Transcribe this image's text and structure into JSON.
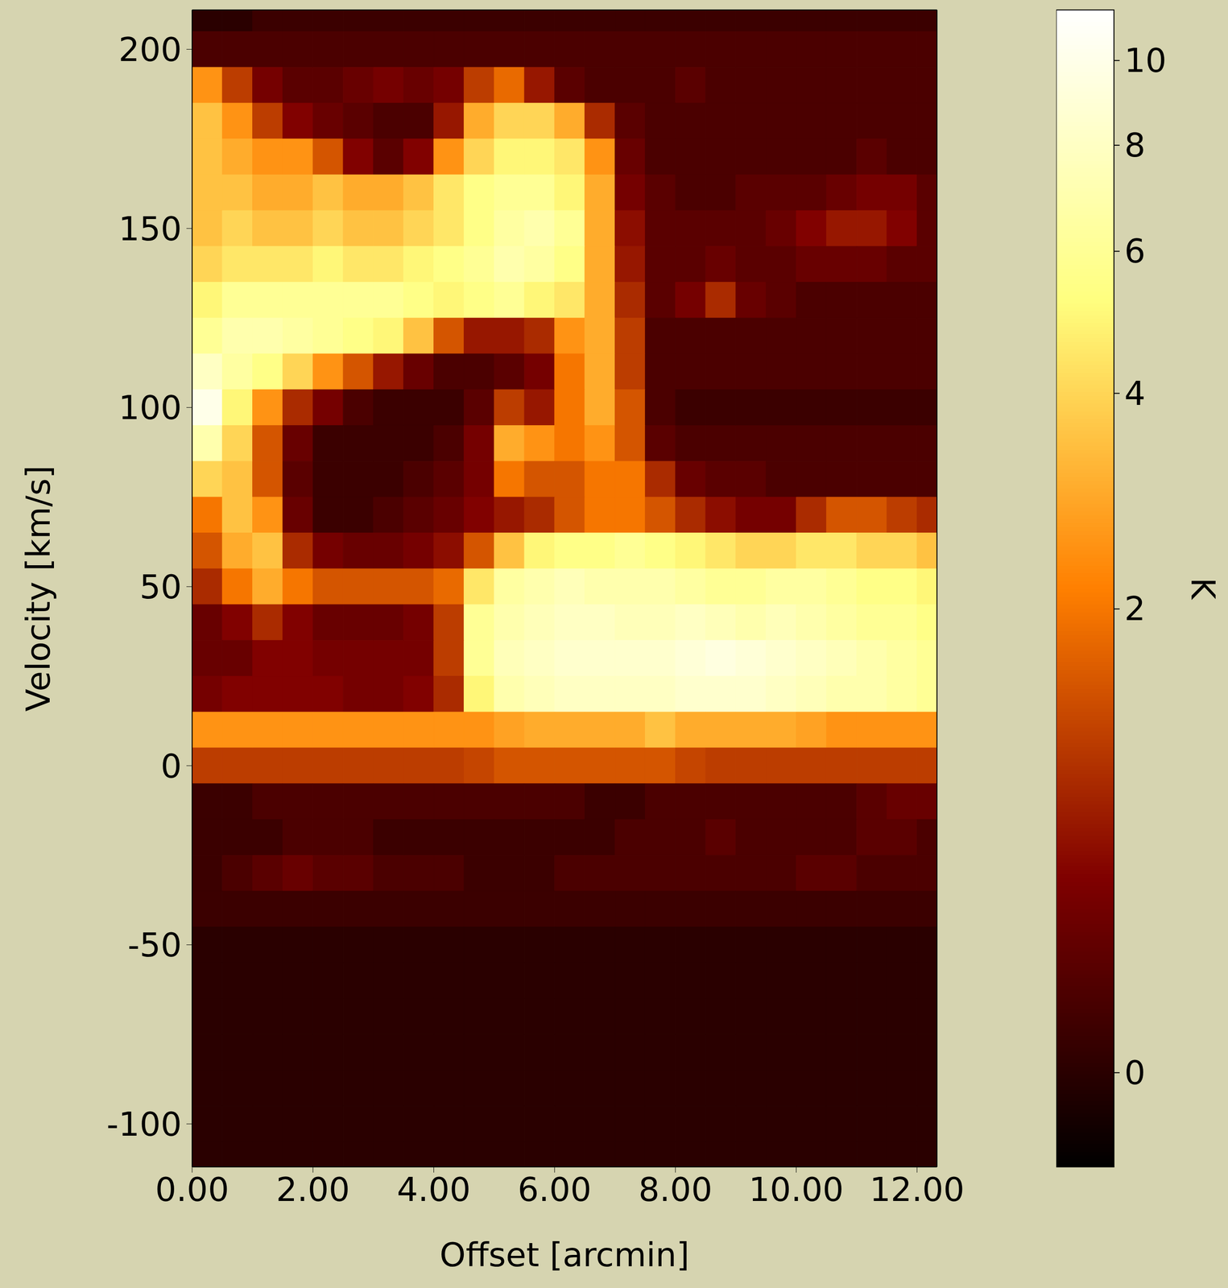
{
  "chart_data": {
    "type": "heatmap",
    "xlabel": "Offset [arcmin]",
    "ylabel": "Velocity [km/s]",
    "xlim": [
      0,
      12.33
    ],
    "ylim": [
      -112,
      211
    ],
    "xticks": [
      {
        "value": 0,
        "label": "0.00"
      },
      {
        "value": 2,
        "label": "2.00"
      },
      {
        "value": 4,
        "label": "4.00"
      },
      {
        "value": 6,
        "label": "6.00"
      },
      {
        "value": 8,
        "label": "8.00"
      },
      {
        "value": 10,
        "label": "10.00"
      },
      {
        "value": 12,
        "label": "12.00"
      }
    ],
    "yticks": [
      -100,
      -50,
      0,
      50,
      100,
      150,
      200
    ],
    "x": [
      0.25,
      0.75,
      1.25,
      1.75,
      2.25,
      2.75,
      3.25,
      3.75,
      4.25,
      4.75,
      5.25,
      5.75,
      6.25,
      6.75,
      7.25,
      7.75,
      8.25,
      8.75,
      9.25,
      9.75,
      10.25,
      10.75,
      11.25,
      11.75,
      12.25
    ],
    "y": [
      210,
      200,
      190,
      180,
      170,
      160,
      150,
      140,
      130,
      120,
      110,
      100,
      90,
      80,
      70,
      60,
      50,
      40,
      30,
      20,
      10,
      0,
      -10,
      -20,
      -30,
      -40,
      -50,
      -60,
      -70,
      -80,
      -90,
      -100,
      -110
    ],
    "cells": [
      [
        0,
        0,
        0.1,
        0.1,
        0.1,
        0.1,
        0.1,
        0.1,
        0.1,
        0.1,
        0.1,
        0.1,
        0.1,
        0.1,
        0.1,
        0.1,
        0.1,
        0.1,
        0.1,
        0.1,
        0.1,
        0.1,
        0.1,
        0.1,
        0.1
      ],
      [
        0.2,
        0.2,
        0.2,
        0.2,
        0.2,
        0.2,
        0.2,
        0.2,
        0.2,
        0.2,
        0.2,
        0.2,
        0.2,
        0.2,
        0.2,
        0.2,
        0.2,
        0.2,
        0.2,
        0.2,
        0.2,
        0.2,
        0.2,
        0.2,
        0.2
      ],
      [
        2.5,
        1.2,
        0.5,
        0.3,
        0.3,
        0.4,
        0.5,
        0.4,
        0.5,
        1.2,
        1.8,
        0.8,
        0.3,
        0.2,
        0.2,
        0.2,
        0.3,
        0.2,
        0.2,
        0.2,
        0.2,
        0.2,
        0.2,
        0.2,
        0.2
      ],
      [
        3.5,
        2.5,
        1.2,
        0.6,
        0.4,
        0.3,
        0.2,
        0.2,
        0.8,
        3.0,
        4.0,
        4.0,
        3.0,
        1.0,
        0.3,
        0.2,
        0.2,
        0.2,
        0.2,
        0.2,
        0.2,
        0.2,
        0.2,
        0.2,
        0.2
      ],
      [
        3.5,
        3.0,
        2.5,
        2.5,
        1.5,
        0.6,
        0.3,
        0.6,
        2.5,
        4.0,
        5.0,
        5.0,
        4.5,
        2.5,
        0.4,
        0.2,
        0.2,
        0.2,
        0.2,
        0.2,
        0.2,
        0.2,
        0.3,
        0.2,
        0.2
      ],
      [
        3.5,
        3.5,
        3.0,
        3.0,
        3.5,
        3.0,
        3.0,
        3.5,
        4.5,
        5.5,
        6.0,
        6.0,
        5.0,
        3.0,
        0.5,
        0.3,
        0.2,
        0.2,
        0.3,
        0.3,
        0.3,
        0.4,
        0.5,
        0.5,
        0.3
      ],
      [
        3.5,
        4.0,
        3.5,
        3.5,
        4.0,
        3.5,
        3.5,
        4.0,
        4.5,
        5.5,
        6.5,
        7.0,
        6.0,
        3.0,
        0.7,
        0.3,
        0.3,
        0.3,
        0.3,
        0.4,
        0.6,
        0.8,
        0.8,
        0.6,
        0.3
      ],
      [
        4.0,
        4.5,
        4.5,
        4.5,
        5.0,
        4.5,
        4.5,
        5.0,
        5.5,
        6.0,
        7.0,
        6.5,
        5.5,
        3.0,
        0.8,
        0.3,
        0.3,
        0.4,
        0.3,
        0.3,
        0.4,
        0.4,
        0.4,
        0.3,
        0.3
      ],
      [
        5.0,
        6.0,
        6.0,
        6.0,
        6.0,
        6.0,
        6.0,
        5.5,
        5.0,
        5.5,
        6.0,
        5.0,
        4.5,
        3.0,
        1.0,
        0.3,
        0.5,
        1.0,
        0.4,
        0.3,
        0.2,
        0.2,
        0.2,
        0.2,
        0.2
      ],
      [
        6.0,
        7.0,
        7.0,
        6.5,
        6.0,
        5.5,
        5.0,
        3.5,
        1.5,
        0.8,
        0.8,
        1.0,
        2.5,
        3.0,
        1.2,
        0.2,
        0.2,
        0.2,
        0.2,
        0.2,
        0.2,
        0.2,
        0.2,
        0.2,
        0.2
      ],
      [
        8.0,
        6.5,
        5.5,
        4.0,
        2.5,
        1.5,
        0.8,
        0.4,
        0.2,
        0.2,
        0.3,
        0.5,
        2.0,
        3.0,
        1.2,
        0.2,
        0.2,
        0.2,
        0.2,
        0.2,
        0.2,
        0.2,
        0.2,
        0.2,
        0.2
      ],
      [
        10.0,
        5.0,
        2.5,
        1.0,
        0.5,
        0.2,
        0.1,
        0.1,
        0.1,
        0.3,
        1.2,
        0.8,
        2.0,
        3.0,
        1.5,
        0.2,
        0.1,
        0.1,
        0.1,
        0.1,
        0.1,
        0.1,
        0.1,
        0.1,
        0.1
      ],
      [
        7.0,
        4.0,
        1.5,
        0.4,
        0.1,
        0.1,
        0.1,
        0.1,
        0.2,
        0.5,
        3.0,
        2.5,
        2.0,
        2.5,
        1.5,
        0.3,
        0.2,
        0.2,
        0.2,
        0.2,
        0.2,
        0.2,
        0.2,
        0.2,
        0.2
      ],
      [
        4.0,
        3.5,
        1.5,
        0.3,
        0.1,
        0.1,
        0.1,
        0.2,
        0.3,
        0.5,
        2.0,
        1.5,
        1.5,
        2.0,
        2.0,
        1.0,
        0.4,
        0.3,
        0.3,
        0.2,
        0.2,
        0.2,
        0.2,
        0.2,
        0.2
      ],
      [
        2.0,
        3.5,
        2.5,
        0.4,
        0.1,
        0.1,
        0.2,
        0.3,
        0.4,
        0.6,
        0.8,
        1.0,
        1.5,
        2.0,
        2.0,
        1.5,
        1.0,
        0.7,
        0.5,
        0.5,
        1.0,
        1.5,
        1.5,
        1.2,
        1.0
      ],
      [
        1.5,
        3.0,
        3.5,
        1.0,
        0.5,
        0.4,
        0.4,
        0.5,
        0.7,
        1.5,
        3.5,
        5.0,
        5.5,
        5.5,
        6.0,
        5.5,
        5.0,
        4.5,
        4.0,
        4.0,
        4.5,
        4.5,
        4.0,
        4.0,
        3.5
      ],
      [
        1.0,
        2.0,
        3.0,
        2.0,
        1.5,
        1.5,
        1.5,
        1.5,
        1.8,
        4.5,
        6.5,
        7.0,
        7.5,
        7.0,
        7.0,
        7.0,
        6.5,
        6.0,
        6.0,
        6.5,
        6.5,
        6.0,
        5.5,
        5.5,
        5.0
      ],
      [
        0.4,
        0.6,
        1.0,
        0.6,
        0.4,
        0.4,
        0.4,
        0.5,
        1.2,
        6.0,
        7.0,
        7.5,
        8.0,
        8.0,
        7.5,
        7.5,
        8.0,
        7.5,
        7.0,
        7.5,
        7.0,
        6.5,
        6.0,
        6.0,
        5.5
      ],
      [
        0.4,
        0.4,
        0.6,
        0.6,
        0.5,
        0.5,
        0.5,
        0.5,
        1.2,
        6.0,
        7.5,
        8.0,
        8.5,
        8.5,
        8.5,
        8.5,
        9.0,
        9.5,
        9.0,
        8.5,
        8.0,
        7.5,
        7.0,
        6.5,
        6.0
      ],
      [
        0.5,
        0.6,
        0.6,
        0.6,
        0.6,
        0.5,
        0.5,
        0.6,
        1.0,
        5.0,
        7.0,
        7.5,
        8.0,
        8.0,
        8.0,
        8.0,
        8.5,
        8.5,
        8.5,
        8.0,
        7.5,
        7.0,
        7.0,
        6.5,
        6.0
      ],
      [
        2.5,
        2.5,
        2.5,
        2.5,
        2.5,
        2.5,
        2.5,
        2.5,
        2.5,
        2.5,
        2.8,
        3.0,
        3.0,
        3.0,
        3.0,
        3.5,
        3.0,
        3.0,
        3.0,
        3.0,
        2.8,
        2.5,
        2.5,
        2.5,
        2.5
      ],
      [
        1.2,
        1.2,
        1.2,
        1.2,
        1.2,
        1.2,
        1.2,
        1.2,
        1.2,
        1.3,
        1.5,
        1.5,
        1.5,
        1.5,
        1.5,
        1.5,
        1.3,
        1.2,
        1.2,
        1.2,
        1.2,
        1.2,
        1.2,
        1.2,
        1.2
      ],
      [
        0.1,
        0.1,
        0.2,
        0.2,
        0.2,
        0.2,
        0.2,
        0.2,
        0.2,
        0.2,
        0.2,
        0.2,
        0.2,
        0.1,
        0.1,
        0.2,
        0.2,
        0.2,
        0.2,
        0.2,
        0.2,
        0.2,
        0.3,
        0.4,
        0.4
      ],
      [
        0.1,
        0.1,
        0.1,
        0.2,
        0.2,
        0.2,
        0.1,
        0.1,
        0.1,
        0.1,
        0.1,
        0.1,
        0.1,
        0.1,
        0.2,
        0.2,
        0.2,
        0.3,
        0.2,
        0.2,
        0.2,
        0.2,
        0.3,
        0.3,
        0.2
      ],
      [
        0.1,
        0.2,
        0.3,
        0.4,
        0.3,
        0.3,
        0.2,
        0.2,
        0.2,
        0.1,
        0.1,
        0.1,
        0.2,
        0.2,
        0.2,
        0.2,
        0.2,
        0.2,
        0.2,
        0.2,
        0.3,
        0.3,
        0.2,
        0.2,
        0.2
      ],
      [
        0.1,
        0.1,
        0.1,
        0.1,
        0.1,
        0.1,
        0.1,
        0.1,
        0.1,
        0.1,
        0.1,
        0.1,
        0.1,
        0.1,
        0.1,
        0.1,
        0.1,
        0.1,
        0.1,
        0.1,
        0.1,
        0.1,
        0.1,
        0.1,
        0.1
      ],
      [
        0,
        0,
        0,
        0,
        0,
        0,
        0,
        0,
        0,
        0,
        0,
        0,
        0,
        0,
        0,
        0,
        0,
        0,
        0,
        0,
        0,
        0,
        0,
        0,
        0
      ],
      [
        0,
        0,
        0,
        0,
        0,
        0,
        0,
        0,
        0,
        0,
        0,
        0,
        0,
        0,
        0,
        0,
        0,
        0,
        0,
        0,
        0,
        0,
        0,
        0,
        0
      ],
      [
        0,
        0,
        0,
        0,
        0,
        0,
        0,
        0,
        0,
        0,
        0,
        0,
        0,
        0,
        0,
        0,
        0,
        0,
        0,
        0,
        0,
        0,
        0,
        0,
        0
      ],
      [
        0,
        0,
        0,
        0,
        0,
        0,
        0,
        0,
        0,
        0,
        0,
        0,
        0,
        0,
        0,
        0,
        0,
        0,
        0,
        0,
        0,
        0,
        0,
        0,
        0
      ],
      [
        0,
        0,
        0,
        0,
        0,
        0,
        0,
        0,
        0,
        0,
        0,
        0,
        0,
        0,
        0,
        0,
        0,
        0,
        0,
        0,
        0,
        0,
        0,
        0,
        0
      ],
      [
        0,
        0,
        0,
        0,
        0,
        0,
        0,
        0,
        0,
        0,
        0,
        0,
        0,
        0,
        0,
        0,
        0,
        0,
        0,
        0,
        0,
        0,
        0,
        0,
        0
      ],
      [
        0,
        0,
        0,
        0,
        0,
        0,
        0,
        0,
        0,
        0,
        0,
        0,
        0,
        0,
        0,
        0,
        0,
        0,
        0,
        0,
        0,
        0,
        0,
        0,
        0
      ]
    ],
    "colorbar": {
      "label": "K",
      "range": [
        -0.2,
        11.4
      ],
      "ticks": [
        0,
        2,
        4,
        6,
        8,
        10
      ]
    }
  }
}
